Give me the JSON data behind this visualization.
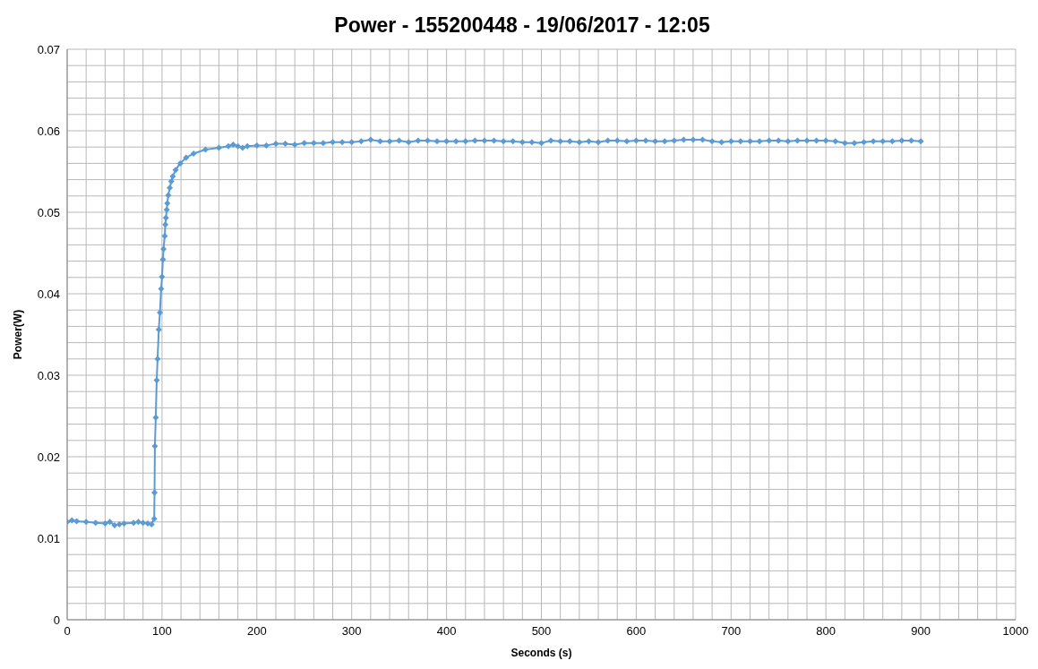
{
  "chart_data": {
    "type": "line",
    "title": "Power - 155200448 - 19/06/2017 - 12:05",
    "xlabel": "Seconds (s)",
    "ylabel": "Power(W)",
    "xlim": [
      0,
      1000
    ],
    "xticks": [
      0,
      {
        "value": 20,
        "label": null
      },
      {
        "value": 40,
        "label": null
      },
      {
        "value": 60,
        "label": null
      },
      {
        "value": 80,
        "label": null
      },
      100,
      {
        "value": 120,
        "label": null
      },
      {
        "value": 140,
        "label": null
      },
      {
        "value": 160,
        "label": null
      },
      {
        "value": 180,
        "label": null
      },
      200,
      {
        "value": 220,
        "label": null
      },
      {
        "value": 240,
        "label": null
      },
      {
        "value": 260,
        "label": null
      },
      {
        "value": 280,
        "label": null
      },
      300,
      {
        "value": 320,
        "label": null
      },
      {
        "value": 340,
        "label": null
      },
      {
        "value": 360,
        "label": null
      },
      {
        "value": 380,
        "label": null
      },
      400,
      {
        "value": 420,
        "label": null
      },
      {
        "value": 440,
        "label": null
      },
      {
        "value": 460,
        "label": null
      },
      {
        "value": 480,
        "label": null
      },
      500,
      {
        "value": 520,
        "label": null
      },
      {
        "value": 540,
        "label": null
      },
      {
        "value": 560,
        "label": null
      },
      {
        "value": 580,
        "label": null
      },
      600,
      {
        "value": 620,
        "label": null
      },
      {
        "value": 640,
        "label": null
      },
      {
        "value": 660,
        "label": null
      },
      {
        "value": 680,
        "label": null
      },
      700,
      {
        "value": 720,
        "label": null
      },
      {
        "value": 740,
        "label": null
      },
      {
        "value": 760,
        "label": null
      },
      {
        "value": 780,
        "label": null
      },
      800,
      {
        "value": 820,
        "label": null
      },
      {
        "value": 840,
        "label": null
      },
      {
        "value": 860,
        "label": null
      },
      {
        "value": 880,
        "label": null
      },
      900,
      {
        "value": 920,
        "label": null
      },
      {
        "value": 940,
        "label": null
      },
      {
        "value": 960,
        "label": null
      },
      {
        "value": 980,
        "label": null
      },
      1000
    ],
    "ylim": [
      0,
      0.07
    ],
    "yticks": [
      0,
      {
        "value": 0.002,
        "label": null
      },
      {
        "value": 0.004,
        "label": null
      },
      {
        "value": 0.006,
        "label": null
      },
      {
        "value": 0.008,
        "label": null
      },
      0.01,
      {
        "value": 0.012,
        "label": null
      },
      {
        "value": 0.014,
        "label": null
      },
      {
        "value": 0.016,
        "label": null
      },
      {
        "value": 0.018,
        "label": null
      },
      0.02,
      {
        "value": 0.022,
        "label": null
      },
      {
        "value": 0.024,
        "label": null
      },
      {
        "value": 0.026,
        "label": null
      },
      {
        "value": 0.028,
        "label": null
      },
      0.03,
      {
        "value": 0.032,
        "label": null
      },
      {
        "value": 0.034,
        "label": null
      },
      {
        "value": 0.036,
        "label": null
      },
      {
        "value": 0.038,
        "label": null
      },
      0.04,
      {
        "value": 0.042,
        "label": null
      },
      {
        "value": 0.044,
        "label": null
      },
      {
        "value": 0.046,
        "label": null
      },
      {
        "value": 0.048,
        "label": null
      },
      0.05,
      {
        "value": 0.052,
        "label": null
      },
      {
        "value": 0.054,
        "label": null
      },
      {
        "value": 0.056,
        "label": null
      },
      {
        "value": 0.058,
        "label": null
      },
      0.06,
      {
        "value": 0.062,
        "label": null
      },
      {
        "value": 0.064,
        "label": null
      },
      {
        "value": 0.066,
        "label": null
      },
      {
        "value": 0.068,
        "label": null
      },
      0.07
    ],
    "grid": true,
    "legend": false,
    "marker": "diamond",
    "line_style": "solid",
    "x": [
      0,
      5,
      10,
      20,
      30,
      40,
      45,
      50,
      55,
      60,
      70,
      75,
      80,
      85,
      89,
      91.8,
      92.1,
      92.5,
      93.4,
      94.4,
      95.3,
      96.6,
      97.8,
      99.1,
      100,
      101,
      101.6,
      102.9,
      103.5,
      104.1,
      105,
      105.6,
      106.6,
      108.2,
      109.8,
      111.3,
      114.4,
      119.2,
      125.4,
      133.3,
      145.8,
      160,
      170,
      175,
      180,
      185,
      190,
      200,
      210,
      220,
      230,
      240,
      250,
      260,
      270,
      280,
      290,
      300,
      310,
      320,
      330,
      340,
      350,
      360,
      370,
      380,
      390,
      400,
      410,
      420,
      430,
      440,
      450,
      460,
      470,
      480,
      490,
      500,
      510,
      520,
      530,
      540,
      550,
      560,
      570,
      580,
      590,
      600,
      610,
      620,
      630,
      640,
      650,
      660,
      670,
      680,
      690,
      700,
      710,
      720,
      730,
      740,
      750,
      760,
      770,
      780,
      790,
      800,
      810,
      820,
      830,
      840,
      850,
      860,
      870,
      880,
      890,
      900
    ],
    "series": [
      {
        "color": "#5b9bd5",
        "values": [
          0.012,
          0.0122,
          0.0121,
          0.012,
          0.0119,
          0.0118,
          0.012,
          0.0116,
          0.0117,
          0.0118,
          0.0119,
          0.012,
          0.0119,
          0.0118,
          0.0117,
          0.0124,
          0.0156,
          0.0213,
          0.0248,
          0.0294,
          0.032,
          0.0356,
          0.0377,
          0.0406,
          0.0421,
          0.0442,
          0.0455,
          0.0471,
          0.0485,
          0.0493,
          0.0503,
          0.0511,
          0.0521,
          0.053,
          0.0538,
          0.0544,
          0.0552,
          0.056,
          0.0567,
          0.0572,
          0.0577,
          0.0579,
          0.0581,
          0.0583,
          0.0581,
          0.0579,
          0.0581,
          0.0582,
          0.0582,
          0.0584,
          0.0584,
          0.0583,
          0.0585,
          0.0585,
          0.0585,
          0.0586,
          0.0586,
          0.0586,
          0.0587,
          0.0589,
          0.0587,
          0.0587,
          0.0588,
          0.0586,
          0.0588,
          0.0588,
          0.0587,
          0.0587,
          0.0587,
          0.0587,
          0.0588,
          0.0588,
          0.0588,
          0.0587,
          0.0587,
          0.0586,
          0.0586,
          0.0585,
          0.0588,
          0.0587,
          0.0587,
          0.0586,
          0.0587,
          0.0586,
          0.0588,
          0.0588,
          0.0587,
          0.0588,
          0.0588,
          0.0587,
          0.0587,
          0.0588,
          0.0589,
          0.0589,
          0.0589,
          0.0587,
          0.0586,
          0.0587,
          0.0587,
          0.0587,
          0.0587,
          0.0588,
          0.0588,
          0.0587,
          0.0588,
          0.0588,
          0.0588,
          0.0588,
          0.0587,
          0.0585,
          0.0585,
          0.0586,
          0.0587,
          0.0587,
          0.0587,
          0.0588,
          0.0588,
          0.0587
        ]
      }
    ]
  }
}
